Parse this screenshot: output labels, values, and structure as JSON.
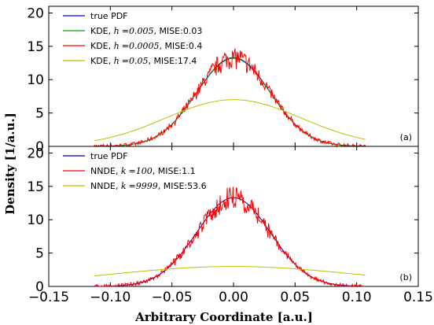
{
  "chart_data": [
    {
      "type": "line",
      "panel_label": "(a)",
      "ylim": [
        0,
        21
      ],
      "xlim": [
        -0.15,
        0.15
      ],
      "yticks": [
        "0",
        "5",
        "10",
        "15",
        "20"
      ],
      "legend_position": "top-left",
      "series": [
        {
          "name": "true PDF",
          "color": "#0000ff",
          "kind": "gaussian",
          "sigma": 0.03,
          "peak": 13.3
        },
        {
          "name": "KDE, h =0.005, MISE:0.03",
          "color": "#00a000",
          "kind": "gaussian",
          "sigma": 0.03,
          "peak": 13.2
        },
        {
          "name": "KDE, h =0.0005, MISE:0.4",
          "color": "#ff0000",
          "kind": "noisy-gaussian",
          "sigma": 0.03,
          "peak": 13.3,
          "noise": 0.12,
          "seed": 7
        },
        {
          "name": "KDE, h =0.05, MISE:17.4",
          "color": "#bfbf00",
          "kind": "gaussian",
          "sigma": 0.055,
          "peak": 7.0
        }
      ],
      "x_range_data": [
        -0.113,
        0.107
      ],
      "legend": [
        {
          "pre": "KDE, ",
          "sym": "h",
          "mid": "=0.005",
          "post": ", MISE:0.03"
        },
        {
          "pre": "KDE, ",
          "sym": "h",
          "mid": "=0.0005",
          "post": ", MISE:0.4"
        },
        {
          "pre": "KDE, ",
          "sym": "h",
          "mid": "=0.05",
          "post": ", MISE:17.4"
        }
      ],
      "legend_first": "true PDF"
    },
    {
      "type": "line",
      "panel_label": "(b)",
      "ylim": [
        0,
        21
      ],
      "xlim": [
        -0.15,
        0.15
      ],
      "yticks": [
        "0",
        "5",
        "10",
        "15",
        "20"
      ],
      "legend_position": "top-left",
      "series": [
        {
          "name": "true PDF",
          "color": "#0000aa",
          "kind": "gaussian",
          "sigma": 0.03,
          "peak": 13.3
        },
        {
          "name": "NNDE, k =100, MISE:1.1",
          "color": "#ff0000",
          "kind": "noisy-gaussian",
          "sigma": 0.03,
          "peak": 13.3,
          "noise": 0.15,
          "seed": 19
        },
        {
          "name": "NNDE, k =9999, MISE:53.6",
          "color": "#bfbf00",
          "kind": "gaussian",
          "sigma": 0.1,
          "peak": 3.0
        }
      ],
      "x_range_data": [
        -0.113,
        0.107
      ],
      "legend": [
        {
          "pre": "NNDE, ",
          "sym": "k",
          "mid": "=100",
          "post": ", MISE:1.1"
        },
        {
          "pre": "NNDE, ",
          "sym": "k",
          "mid": "=9999",
          "post": ", MISE:53.6"
        }
      ],
      "legend_first": "true PDF"
    }
  ],
  "xticks": [
    "−0.15",
    "−0.10",
    "−0.05",
    "0.00",
    "0.05",
    "0.10",
    "0.15"
  ],
  "xlabel": "Arbitrary Coordinate [a.u.]",
  "ylabel": "Density [1/a.u.]"
}
